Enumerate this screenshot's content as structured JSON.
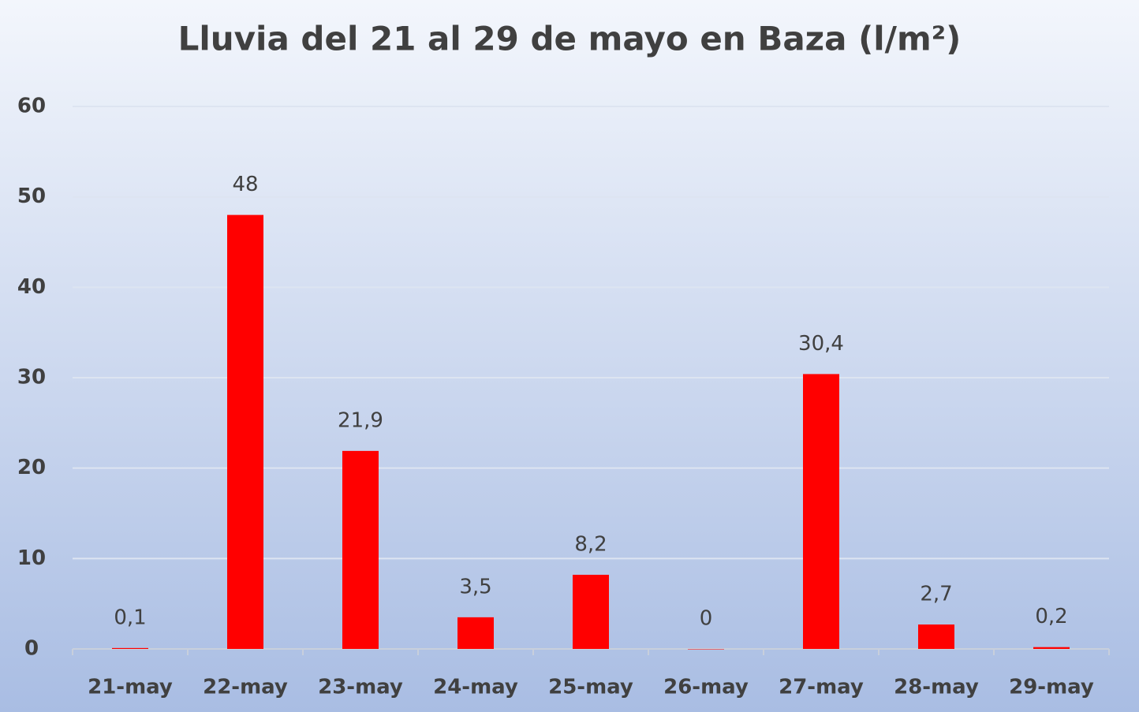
{
  "chart_data": {
    "type": "bar",
    "title": "Lluvia del 21 al 29 de mayo en Baza (l/m²)",
    "categories": [
      "21-may",
      "22-may",
      "23-may",
      "24-may",
      "25-may",
      "26-may",
      "27-may",
      "28-may",
      "29-may"
    ],
    "values": [
      0.1,
      48,
      21.9,
      3.5,
      8.2,
      0,
      30.4,
      2.7,
      0.2
    ],
    "value_labels": [
      "0,1",
      "48",
      "21,9",
      "3,5",
      "8,2",
      "0",
      "30,4",
      "2,7",
      "0,2"
    ],
    "color": "#ff0000",
    "ylim": [
      0,
      60
    ],
    "yticks": [
      0,
      10,
      20,
      30,
      40,
      50,
      60
    ],
    "grid": true
  }
}
